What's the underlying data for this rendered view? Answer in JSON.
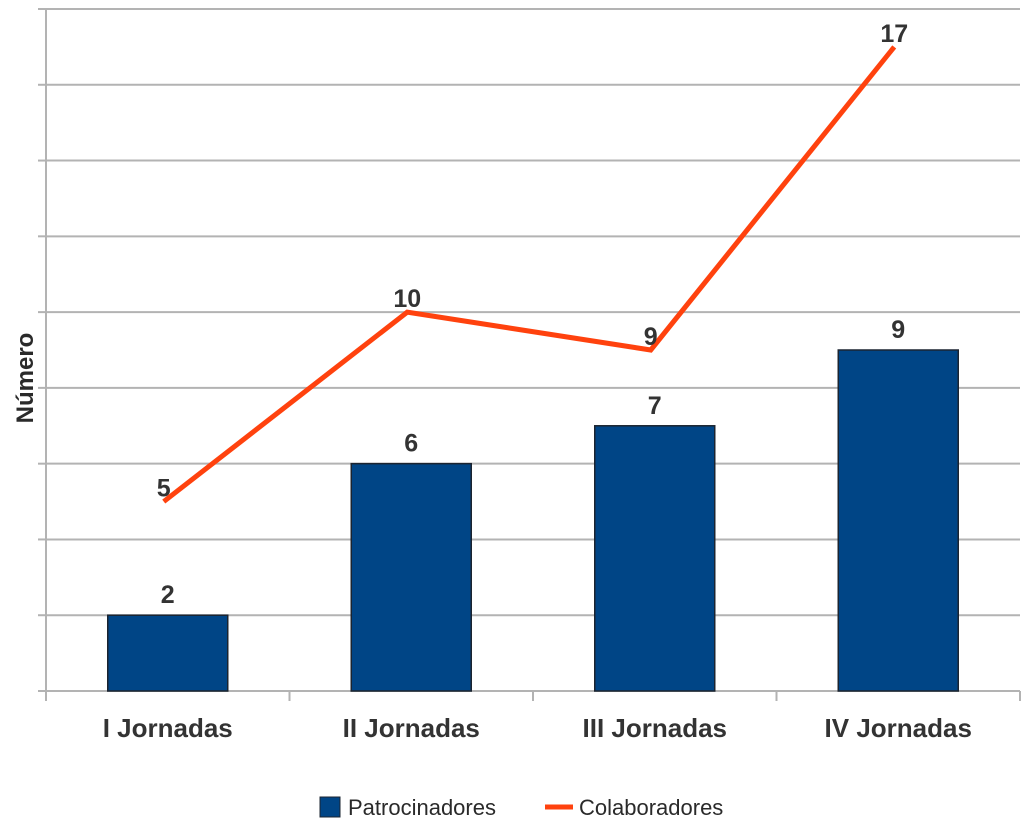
{
  "chart_data": {
    "type": "bar",
    "title": "",
    "xlabel": "",
    "ylabel": "Número",
    "categories": [
      "I Jornadas",
      "II Jornadas",
      "III Jornadas",
      "IV Jornadas"
    ],
    "series": [
      {
        "name": "Patrocinadores",
        "type": "bar",
        "color": "#004586",
        "values": [
          2,
          6,
          7,
          9
        ]
      },
      {
        "name": "Colaboradores",
        "type": "line",
        "color": "#ff420e",
        "values": [
          5,
          10,
          9,
          17
        ]
      }
    ],
    "ylim": [
      0,
      18
    ],
    "ytick_step": 2,
    "grid": true,
    "legend": "bottom"
  }
}
